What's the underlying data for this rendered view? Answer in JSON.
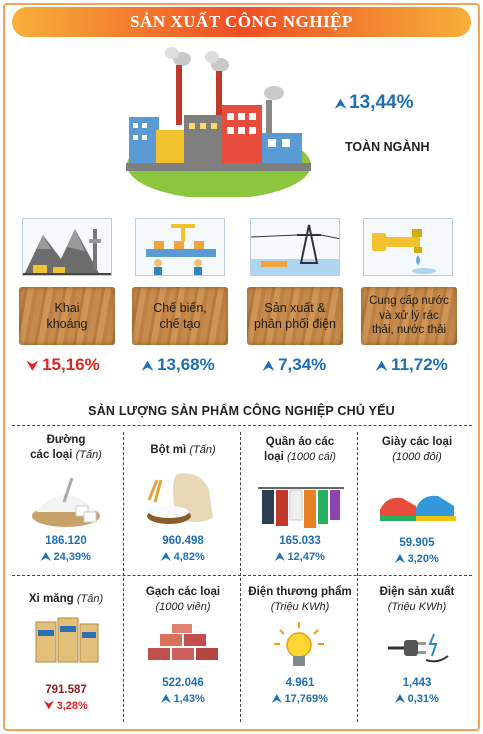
{
  "title": "SẢN XUẤT CÔNG NGHIỆP",
  "total": {
    "pct": "13,44%",
    "label": "TOÀN NGÀNH"
  },
  "sectors": [
    {
      "label1": "Khai",
      "label2": "khoáng",
      "pct": "15,16%",
      "dir": "down",
      "icon": "mining-icon"
    },
    {
      "label1": "Chế biến,",
      "label2": "chế tạo",
      "pct": "13,68%",
      "dir": "up",
      "icon": "factory-robot-icon"
    },
    {
      "label1": "Sản xuất &",
      "label2": "phân phối điện",
      "pct": "7,34%",
      "dir": "up",
      "icon": "power-tower-icon"
    },
    {
      "label1": "Cung cấp nước và xử lý rác",
      "label2": "thải, nước thải",
      "pct": "11,72%",
      "dir": "up",
      "icon": "water-tap-icon"
    }
  ],
  "products_title": "SẢN LƯỢNG SẢN PHẨM CÔNG NGHIỆP CHỦ YẾU",
  "products": [
    {
      "name": "Đường",
      "name2": "các loại",
      "unit": "(Tấn)",
      "value": "186.120",
      "change": "24,39%",
      "dir": "up",
      "icon": "sugar-icon"
    },
    {
      "name": "Bột mì",
      "unit": "(Tấn)",
      "value": "960.498",
      "change": "4,82%",
      "dir": "up",
      "icon": "flour-icon"
    },
    {
      "name": "Quần áo các",
      "name2": "loại",
      "unit": "(1000 cái)",
      "value": "165.033",
      "change": "12,47%",
      "dir": "up",
      "icon": "clothes-icon"
    },
    {
      "name": "Giày các loại",
      "unit": "(1000 đôi)",
      "value": "59.905",
      "change": "3,20%",
      "dir": "up",
      "icon": "shoe-icon"
    },
    {
      "name": "Xi măng",
      "unit": "(Tấn)",
      "value": "791.587",
      "change": "3,28%",
      "dir": "down",
      "icon": "cement-icon"
    },
    {
      "name": "Gạch các loại",
      "unit": "(1000 viên)",
      "value": "522.046",
      "change": "1,43%",
      "dir": "up",
      "icon": "brick-icon"
    },
    {
      "name": "Điện thương phẩm",
      "unit": "(Triệu KWh)",
      "value": "4.961",
      "change": "17,769%",
      "dir": "up",
      "icon": "light-bulb-icon"
    },
    {
      "name": "Điện sản xuất",
      "unit": "(Triệu KWh)",
      "value": "1,443",
      "change": "0,31%",
      "dir": "up",
      "icon": "power-plug-icon"
    }
  ],
  "colors": {
    "up": "#1f6fb5",
    "down": "#e02424",
    "banner": "#ef4f23",
    "border": "#f5a25a"
  }
}
